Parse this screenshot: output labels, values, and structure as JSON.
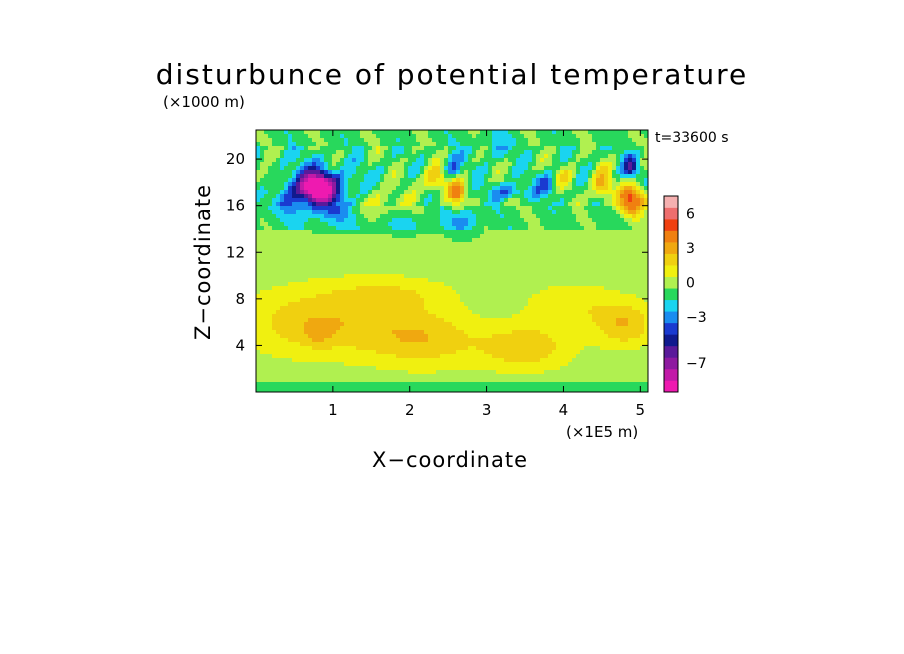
{
  "chart_data": {
    "type": "heatmap",
    "title": "disturbunce of potential temperature",
    "xlabel": "X−coordinate",
    "ylabel": "Z−coordinate",
    "x_unit": "(×1E5 m)",
    "y_unit": "(×1000 m)",
    "time_label": "t=33600 s",
    "xlim": [
      0,
      5.1
    ],
    "ylim": [
      0,
      22.5
    ],
    "x_ticks": [
      1,
      2,
      3,
      4,
      5
    ],
    "x_tick_labels": [
      "1",
      "2",
      "3",
      "4",
      "5"
    ],
    "y_ticks": [
      4,
      8,
      12,
      16,
      20
    ],
    "y_tick_labels": [
      "4",
      "8",
      "12",
      "16",
      "20"
    ],
    "colorbar": {
      "levels": [
        -9,
        -8,
        -7,
        -6,
        -5,
        -4,
        -3,
        -2,
        -1,
        0,
        1,
        2,
        3,
        4,
        5,
        6,
        7
      ],
      "colors": [
        "#ee1ab0",
        "#c21aa8",
        "#8e1aa0",
        "#5a1a9a",
        "#101a8e",
        "#1a3ad0",
        "#1a8cf0",
        "#1ad4f0",
        "#28d85c",
        "#b0f050",
        "#f0f010",
        "#f0d010",
        "#f0a810",
        "#f08010",
        "#f04010",
        "#ee6e6e",
        "#f5b0b0"
      ],
      "tick_values": [
        6,
        3,
        0,
        -3,
        -7
      ],
      "tick_labels": [
        "6",
        "3",
        "0",
        "−3",
        "−7"
      ]
    },
    "features": [
      {
        "x": 0.8,
        "z": 17.6,
        "value": -7.5,
        "sx": 0.22,
        "sz": 1.2
      },
      {
        "x": 0.7,
        "z": 17.4,
        "value": -3.5,
        "sx": 0.55,
        "sz": 2.0
      },
      {
        "x": 0.18,
        "z": 18.0,
        "value": 2.5,
        "sx": 0.2,
        "sz": 1.2
      },
      {
        "x": 1.05,
        "z": 15.6,
        "value": -1.2,
        "sx": 0.35,
        "sz": 1.4
      },
      {
        "x": 1.6,
        "z": 16.2,
        "value": 1.8,
        "sx": 0.35,
        "sz": 1.4
      },
      {
        "x": 2.35,
        "z": 18.3,
        "value": 3.2,
        "sx": 0.18,
        "sz": 1.2
      },
      {
        "x": 2.62,
        "z": 17.0,
        "value": 5.0,
        "sx": 0.12,
        "sz": 1.3
      },
      {
        "x": 2.55,
        "z": 19.0,
        "value": -3.0,
        "sx": 0.12,
        "sz": 1.2
      },
      {
        "x": 2.7,
        "z": 15.0,
        "value": -2.0,
        "sx": 0.2,
        "sz": 1.4
      },
      {
        "x": 3.3,
        "z": 17.2,
        "value": -2.5,
        "sx": 0.25,
        "sz": 0.6
      },
      {
        "x": 3.8,
        "z": 17.8,
        "value": -2.8,
        "sx": 0.15,
        "sz": 1.0
      },
      {
        "x": 4.0,
        "z": 18.4,
        "value": 2.2,
        "sx": 0.15,
        "sz": 1.0
      },
      {
        "x": 4.5,
        "z": 17.8,
        "value": 4.0,
        "sx": 0.12,
        "sz": 1.3
      },
      {
        "x": 4.87,
        "z": 19.3,
        "value": -4.5,
        "sx": 0.1,
        "sz": 0.9
      },
      {
        "x": 4.9,
        "z": 16.5,
        "value": 6.0,
        "sx": 0.18,
        "sz": 1.3
      },
      {
        "x": 3.1,
        "z": 21.0,
        "value": -1.0,
        "sx": 0.3,
        "sz": 1.0
      },
      {
        "x": 1.9,
        "z": 14.5,
        "value": -0.8,
        "sx": 0.5,
        "sz": 1.0
      },
      {
        "x": 0.9,
        "z": 6.0,
        "value": 2.6,
        "sx": 1.1,
        "sz": 3.0
      },
      {
        "x": 0.8,
        "z": 5.0,
        "value": 1.0,
        "sx": 0.2,
        "sz": 1.0
      },
      {
        "x": 2.2,
        "z": 4.5,
        "value": 2.2,
        "sx": 0.7,
        "sz": 2.5
      },
      {
        "x": 3.5,
        "z": 3.8,
        "value": 2.5,
        "sx": 0.6,
        "sz": 2.0
      },
      {
        "x": 4.8,
        "z": 5.8,
        "value": 2.6,
        "sx": 0.4,
        "sz": 2.0
      },
      {
        "x": 4.1,
        "z": 7.5,
        "value": 1.5,
        "sx": 0.6,
        "sz": 2.0
      },
      {
        "x": 1.8,
        "z": 8.5,
        "value": 1.3,
        "sx": 0.8,
        "sz": 1.5
      }
    ]
  }
}
